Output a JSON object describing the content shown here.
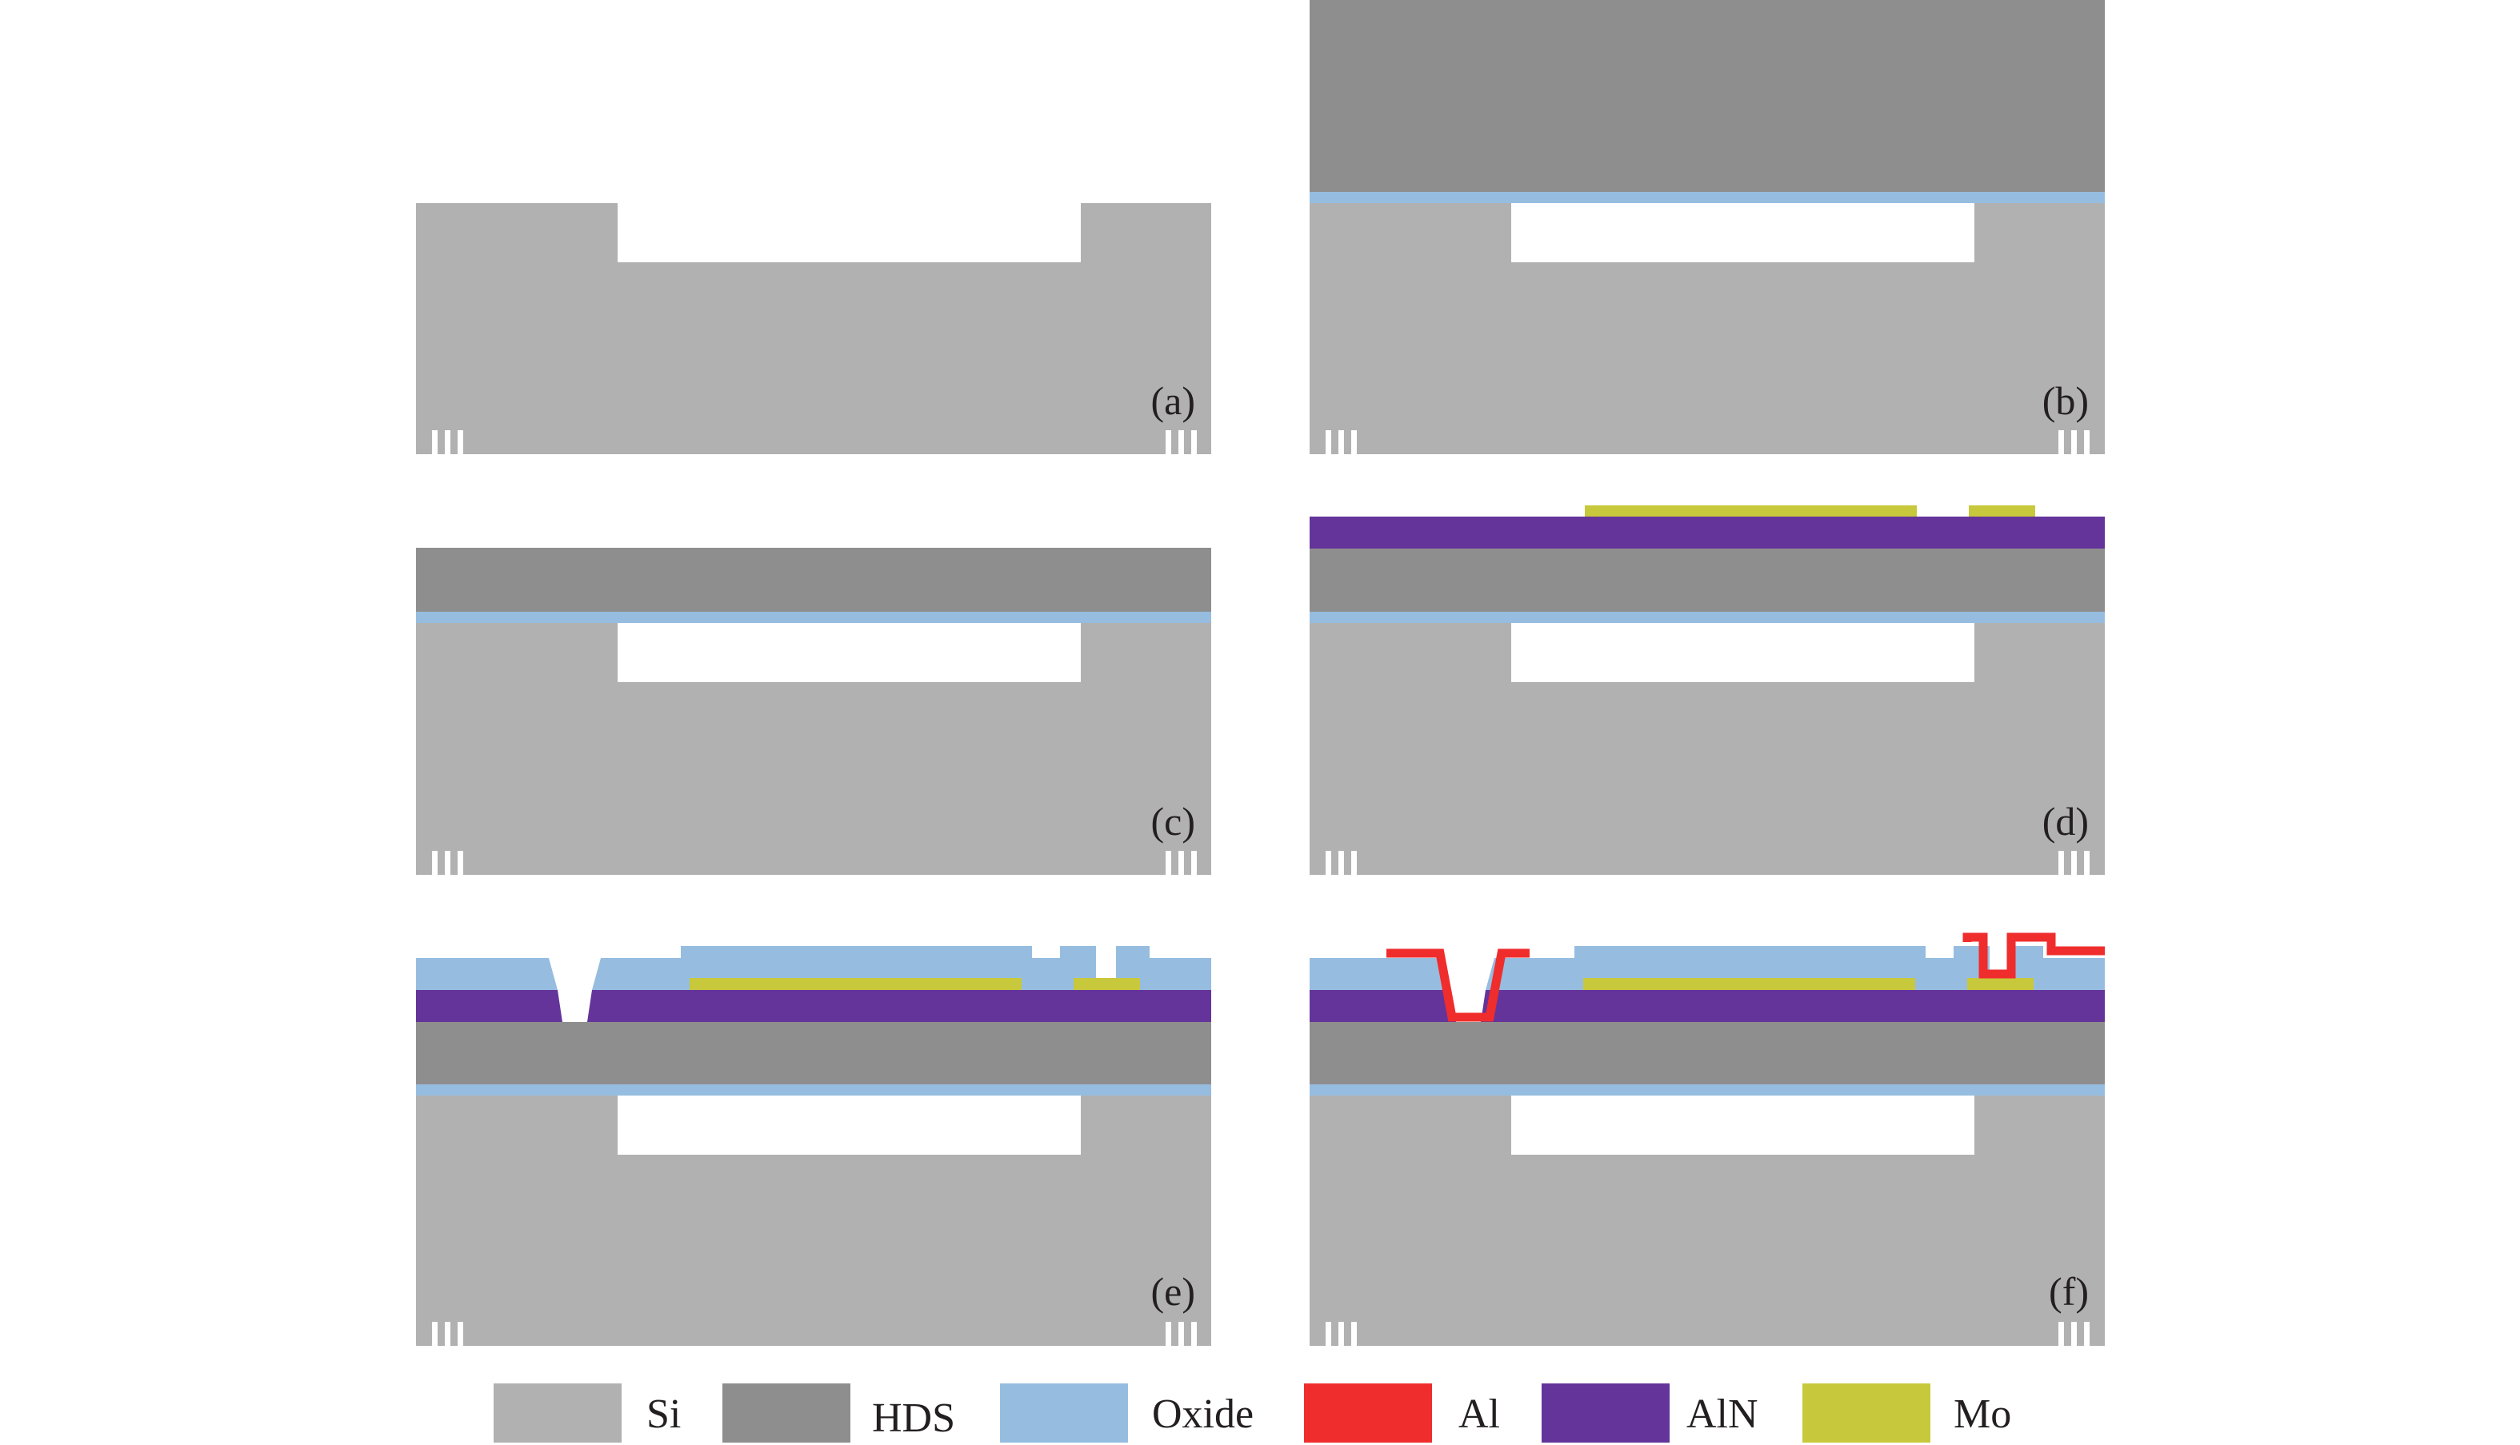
{
  "colors": {
    "Si": "#b1b1b1",
    "HDS": "#8f8e8e",
    "Oxide": "#96bde0",
    "Al": "#ef2d2d",
    "AlN": "#64349a",
    "Mo": "#c8c83c",
    "cavity": "#ffffff"
  },
  "panels": [
    {
      "id": "a",
      "label": "(a)"
    },
    {
      "id": "b",
      "label": "(b)"
    },
    {
      "id": "c",
      "label": "(c)"
    },
    {
      "id": "d",
      "label": "(d)"
    },
    {
      "id": "e",
      "label": "(e)"
    },
    {
      "id": "f",
      "label": "(f)"
    }
  ],
  "legend": [
    {
      "material": "Si",
      "label": "Si"
    },
    {
      "material": "HDS",
      "label": "HDS"
    },
    {
      "material": "Oxide",
      "label": "Oxide"
    },
    {
      "material": "Al",
      "label": "Al"
    },
    {
      "material": "AlN",
      "label": "AlN"
    },
    {
      "material": "Mo",
      "label": "Mo"
    }
  ]
}
